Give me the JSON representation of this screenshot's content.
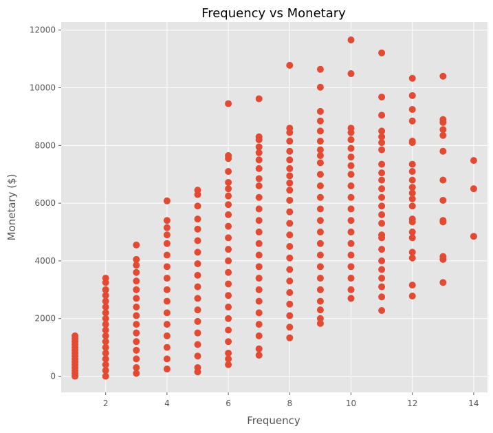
{
  "chart_data": {
    "type": "scatter",
    "title": "Frequency vs Monetary",
    "xlabel": "Frequency",
    "ylabel": "Monetary ($)",
    "xlim": [
      0.55,
      14.45
    ],
    "ylim": [
      -560,
      12280
    ],
    "x_ticks": [
      2,
      4,
      6,
      8,
      10,
      12,
      14
    ],
    "y_ticks": [
      0,
      2000,
      4000,
      6000,
      8000,
      10000,
      12000
    ],
    "x_tick_labels": [
      "2",
      "4",
      "6",
      "8",
      "10",
      "12",
      "14"
    ],
    "y_tick_labels": [
      "0",
      "2000",
      "4000",
      "6000",
      "8000",
      "10000",
      "12000"
    ],
    "grid": true,
    "colors": {
      "marker": "#E24A33",
      "background": "#E5E5E5",
      "grid": "#FFFFFF"
    },
    "series": [
      {
        "points": [
          [
            1,
            0
          ],
          [
            1,
            100
          ],
          [
            1,
            200
          ],
          [
            1,
            300
          ],
          [
            1,
            400
          ],
          [
            1,
            500
          ],
          [
            1,
            600
          ],
          [
            1,
            700
          ],
          [
            1,
            800
          ],
          [
            1,
            900
          ],
          [
            1,
            1000
          ],
          [
            1,
            1100
          ],
          [
            1,
            1200
          ],
          [
            1,
            1300
          ],
          [
            1,
            1400
          ],
          [
            2,
            0
          ],
          [
            2,
            200
          ],
          [
            2,
            400
          ],
          [
            2,
            600
          ],
          [
            2,
            800
          ],
          [
            2,
            1000
          ],
          [
            2,
            1200
          ],
          [
            2,
            1400
          ],
          [
            2,
            1600
          ],
          [
            2,
            1800
          ],
          [
            2,
            2000
          ],
          [
            2,
            2200
          ],
          [
            2,
            2400
          ],
          [
            2,
            2600
          ],
          [
            2,
            2800
          ],
          [
            2,
            3000
          ],
          [
            2,
            3250
          ],
          [
            2,
            3400
          ],
          [
            3,
            100
          ],
          [
            3,
            300
          ],
          [
            3,
            600
          ],
          [
            3,
            900
          ],
          [
            3,
            1200
          ],
          [
            3,
            1500
          ],
          [
            3,
            1800
          ],
          [
            3,
            2100
          ],
          [
            3,
            2400
          ],
          [
            3,
            2700
          ],
          [
            3,
            3000
          ],
          [
            3,
            3300
          ],
          [
            3,
            3600
          ],
          [
            3,
            3850
          ],
          [
            3,
            4050
          ],
          [
            3,
            4550
          ],
          [
            4,
            250
          ],
          [
            4,
            600
          ],
          [
            4,
            1000
          ],
          [
            4,
            1400
          ],
          [
            4,
            1800
          ],
          [
            4,
            2200
          ],
          [
            4,
            2600
          ],
          [
            4,
            3000
          ],
          [
            4,
            3400
          ],
          [
            4,
            3800
          ],
          [
            4,
            4200
          ],
          [
            4,
            4600
          ],
          [
            4,
            4900
          ],
          [
            4,
            5150
          ],
          [
            4,
            5400
          ],
          [
            4,
            6080
          ],
          [
            5,
            150
          ],
          [
            5,
            300
          ],
          [
            5,
            700
          ],
          [
            5,
            1100
          ],
          [
            5,
            1500
          ],
          [
            5,
            1900
          ],
          [
            5,
            2300
          ],
          [
            5,
            2700
          ],
          [
            5,
            3100
          ],
          [
            5,
            3500
          ],
          [
            5,
            3900
          ],
          [
            5,
            4300
          ],
          [
            5,
            4700
          ],
          [
            5,
            5100
          ],
          [
            5,
            5450
          ],
          [
            5,
            5900
          ],
          [
            5,
            6300
          ],
          [
            5,
            6450
          ],
          [
            6,
            400
          ],
          [
            6,
            600
          ],
          [
            6,
            800
          ],
          [
            6,
            1200
          ],
          [
            6,
            1600
          ],
          [
            6,
            2000
          ],
          [
            6,
            2400
          ],
          [
            6,
            2800
          ],
          [
            6,
            3200
          ],
          [
            6,
            3600
          ],
          [
            6,
            4000
          ],
          [
            6,
            4400
          ],
          [
            6,
            4800
          ],
          [
            6,
            5200
          ],
          [
            6,
            5600
          ],
          [
            6,
            5950
          ],
          [
            6,
            6250
          ],
          [
            6,
            6500
          ],
          [
            6,
            6720
          ],
          [
            6,
            7100
          ],
          [
            6,
            7550
          ],
          [
            6,
            7650
          ],
          [
            6,
            9450
          ],
          [
            7,
            730
          ],
          [
            7,
            950
          ],
          [
            7,
            1400
          ],
          [
            7,
            1800
          ],
          [
            7,
            2200
          ],
          [
            7,
            2600
          ],
          [
            7,
            3000
          ],
          [
            7,
            3400
          ],
          [
            7,
            3800
          ],
          [
            7,
            4200
          ],
          [
            7,
            4600
          ],
          [
            7,
            5000
          ],
          [
            7,
            5400
          ],
          [
            7,
            5800
          ],
          [
            7,
            6200
          ],
          [
            7,
            6600
          ],
          [
            7,
            6850
          ],
          [
            7,
            7200
          ],
          [
            7,
            7500
          ],
          [
            7,
            7750
          ],
          [
            7,
            7950
          ],
          [
            7,
            8200
          ],
          [
            7,
            8300
          ],
          [
            7,
            9620
          ],
          [
            8,
            1330
          ],
          [
            8,
            1700
          ],
          [
            8,
            2100
          ],
          [
            8,
            2500
          ],
          [
            8,
            2900
          ],
          [
            8,
            3300
          ],
          [
            8,
            3700
          ],
          [
            8,
            4100
          ],
          [
            8,
            4500
          ],
          [
            8,
            4900
          ],
          [
            8,
            5300
          ],
          [
            8,
            5700
          ],
          [
            8,
            6100
          ],
          [
            8,
            6450
          ],
          [
            8,
            6700
          ],
          [
            8,
            6950
          ],
          [
            8,
            7200
          ],
          [
            8,
            7500
          ],
          [
            8,
            7800
          ],
          [
            8,
            8150
          ],
          [
            8,
            8450
          ],
          [
            8,
            8600
          ],
          [
            8,
            10780
          ],
          [
            9,
            1830
          ],
          [
            9,
            2000
          ],
          [
            9,
            2300
          ],
          [
            9,
            2600
          ],
          [
            9,
            3000
          ],
          [
            9,
            3400
          ],
          [
            9,
            3800
          ],
          [
            9,
            4200
          ],
          [
            9,
            4600
          ],
          [
            9,
            5000
          ],
          [
            9,
            5400
          ],
          [
            9,
            5800
          ],
          [
            9,
            6200
          ],
          [
            9,
            6600
          ],
          [
            9,
            7000
          ],
          [
            9,
            7400
          ],
          [
            9,
            7650
          ],
          [
            9,
            7850
          ],
          [
            9,
            8150
          ],
          [
            9,
            8500
          ],
          [
            9,
            8850
          ],
          [
            9,
            9180
          ],
          [
            9,
            10020
          ],
          [
            9,
            10640
          ],
          [
            10,
            2700
          ],
          [
            10,
            3000
          ],
          [
            10,
            3400
          ],
          [
            10,
            3800
          ],
          [
            10,
            4200
          ],
          [
            10,
            4600
          ],
          [
            10,
            5000
          ],
          [
            10,
            5400
          ],
          [
            10,
            5800
          ],
          [
            10,
            6200
          ],
          [
            10,
            6600
          ],
          [
            10,
            7000
          ],
          [
            10,
            7300
          ],
          [
            10,
            7600
          ],
          [
            10,
            7900
          ],
          [
            10,
            8200
          ],
          [
            10,
            8450
          ],
          [
            10,
            8600
          ],
          [
            10,
            10490
          ],
          [
            10,
            11660
          ],
          [
            11,
            2280
          ],
          [
            11,
            2750
          ],
          [
            11,
            3100
          ],
          [
            11,
            3400
          ],
          [
            11,
            3700
          ],
          [
            11,
            4000
          ],
          [
            11,
            4400
          ],
          [
            11,
            4800
          ],
          [
            11,
            4900
          ],
          [
            11,
            5300
          ],
          [
            11,
            5600
          ],
          [
            11,
            5900
          ],
          [
            11,
            6200
          ],
          [
            11,
            6500
          ],
          [
            11,
            6800
          ],
          [
            11,
            7050
          ],
          [
            11,
            7350
          ],
          [
            11,
            7850
          ],
          [
            11,
            8100
          ],
          [
            11,
            8300
          ],
          [
            11,
            8500
          ],
          [
            11,
            9050
          ],
          [
            11,
            9680
          ],
          [
            11,
            11210
          ],
          [
            12,
            2780
          ],
          [
            12,
            3160
          ],
          [
            12,
            4100
          ],
          [
            12,
            4300
          ],
          [
            12,
            4800
          ],
          [
            12,
            5000
          ],
          [
            12,
            5350
          ],
          [
            12,
            5450
          ],
          [
            12,
            5900
          ],
          [
            12,
            6150
          ],
          [
            12,
            6350
          ],
          [
            12,
            6550
          ],
          [
            12,
            6800
          ],
          [
            12,
            7100
          ],
          [
            12,
            7350
          ],
          [
            12,
            8100
          ],
          [
            12,
            8150
          ],
          [
            12,
            8850
          ],
          [
            12,
            9250
          ],
          [
            12,
            9730
          ],
          [
            12,
            10330
          ],
          [
            13,
            3250
          ],
          [
            13,
            4050
          ],
          [
            13,
            4150
          ],
          [
            13,
            5350
          ],
          [
            13,
            5400
          ],
          [
            13,
            6100
          ],
          [
            13,
            6800
          ],
          [
            13,
            7800
          ],
          [
            13,
            8350
          ],
          [
            13,
            8550
          ],
          [
            13,
            8800
          ],
          [
            13,
            8900
          ],
          [
            13,
            10400
          ],
          [
            14,
            4850
          ],
          [
            14,
            6500
          ],
          [
            14,
            7480
          ]
        ]
      }
    ]
  }
}
